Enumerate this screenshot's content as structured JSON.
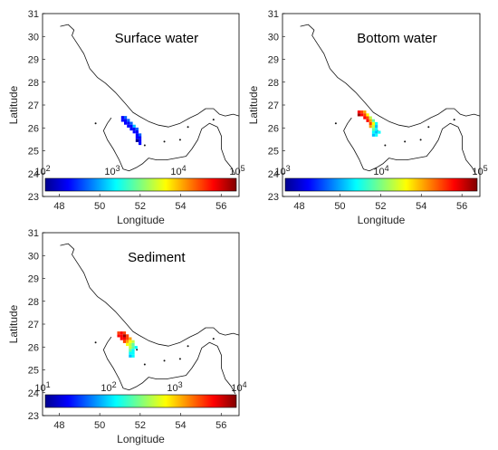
{
  "panels": [
    {
      "id": "surface",
      "title": "Surface water",
      "ylabel": "Latitude",
      "xlabel": "Longitude",
      "yticks": [
        "31",
        "30",
        "29",
        "28",
        "27",
        "26",
        "25",
        "24",
        "23"
      ],
      "xticks": [
        "48",
        "50",
        "52",
        "54",
        "56"
      ],
      "colorbar": {
        "labels": [
          {
            "base": "10",
            "exp": "2"
          },
          {
            "base": "10",
            "exp": "3"
          },
          {
            "base": "10",
            "exp": "4"
          },
          {
            "base": "10",
            "exp": "5"
          }
        ]
      },
      "plume": "surface"
    },
    {
      "id": "bottom",
      "title": "Bottom water",
      "ylabel": "Latitude",
      "xlabel": "Longitude",
      "yticks": [
        "31",
        "30",
        "29",
        "28",
        "27",
        "26",
        "25",
        "24",
        "23"
      ],
      "xticks": [
        "48",
        "50",
        "52",
        "54",
        "56"
      ],
      "colorbar": {
        "labels": [
          {
            "base": "10",
            "exp": "3"
          },
          {
            "base": "10",
            "exp": "4"
          },
          {
            "base": "10",
            "exp": "5"
          }
        ]
      },
      "plume": "bottom"
    },
    {
      "id": "sediment",
      "title": "Sediment",
      "ylabel": "Latitude",
      "xlabel": "Longitude",
      "yticks": [
        "31",
        "30",
        "29",
        "28",
        "27",
        "26",
        "25",
        "24",
        "23"
      ],
      "xticks": [
        "48",
        "50",
        "52",
        "54",
        "56"
      ],
      "colorbar": {
        "labels": [
          {
            "base": "10",
            "exp": "1"
          },
          {
            "base": "10",
            "exp": "2"
          },
          {
            "base": "10",
            "exp": "3"
          },
          {
            "base": "10",
            "exp": "4"
          }
        ]
      },
      "plume": "sediment"
    }
  ],
  "colormap": "jet"
}
